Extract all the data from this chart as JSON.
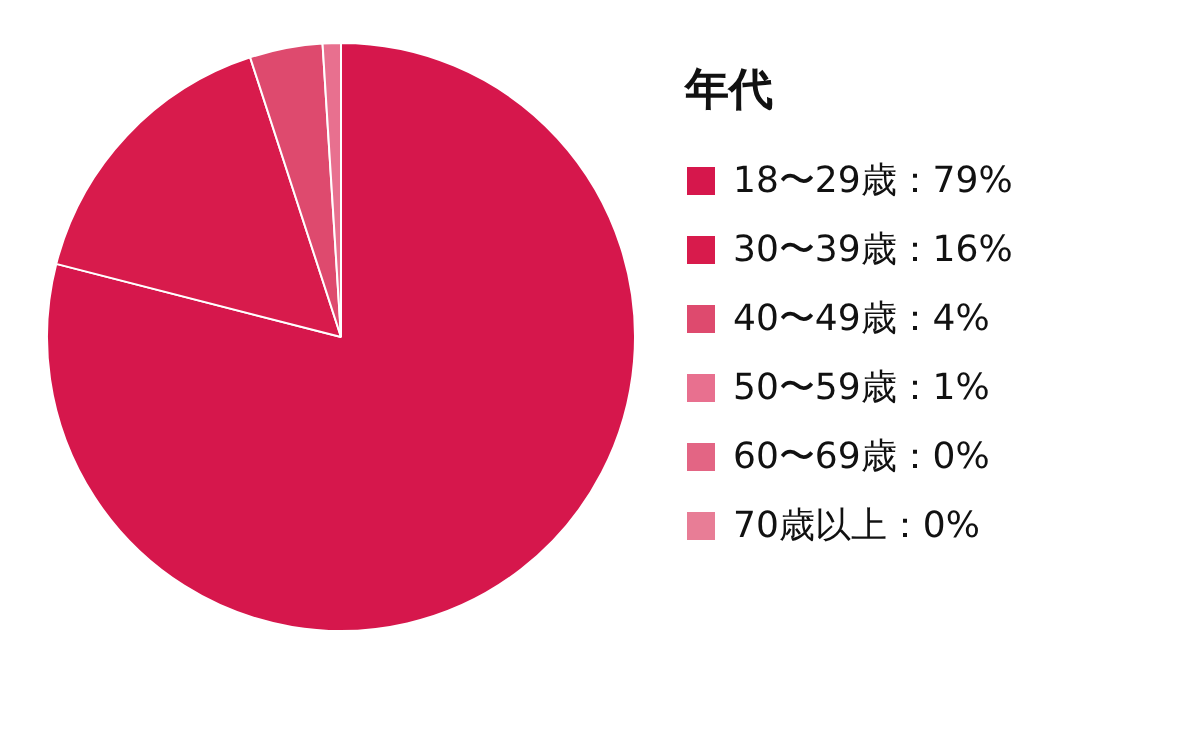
{
  "chart_data": {
    "type": "pie",
    "legend_title": "年代",
    "legend": "right",
    "categories": [
      "18〜29歳：79%",
      "30〜39歳：16%",
      "40〜49歳：4%",
      "50〜59歳：1%",
      "60〜69歳：0%",
      "70歳以上：0%"
    ],
    "values": [
      79,
      16,
      4,
      1,
      0,
      0
    ],
    "colors": [
      "#d6174c",
      "#d81b4c",
      "#de4a6e",
      "#e8708f",
      "#e36584",
      "#e87d96"
    ]
  }
}
